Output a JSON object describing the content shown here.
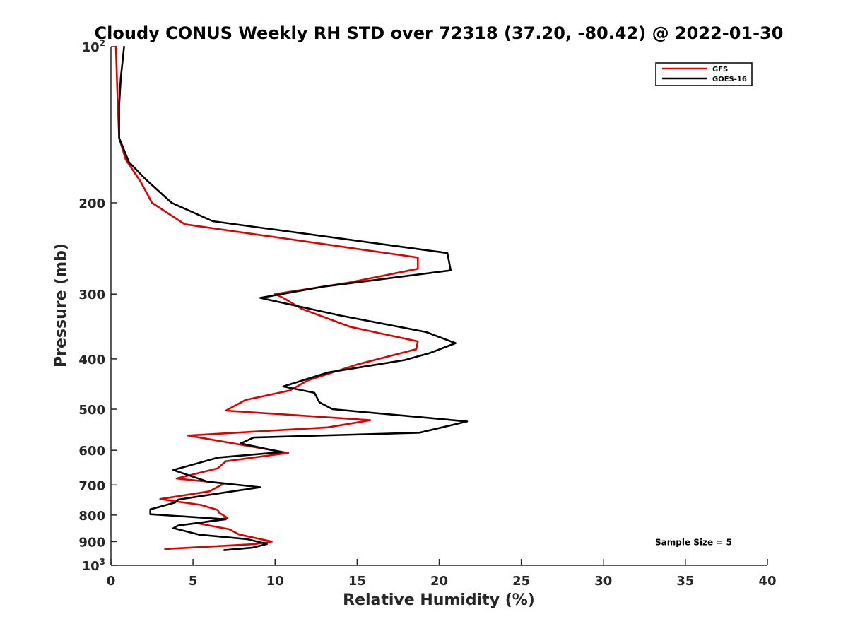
{
  "chart_data": {
    "type": "line",
    "title": "Cloudy CONUS Weekly RH STD over 72318 (37.20, -80.42) @ 2022-01-30",
    "xlabel": "Relative Humidity (%)",
    "ylabel": "Pressure (mb)",
    "xlim": [
      0,
      40
    ],
    "ylim": [
      100,
      1000
    ],
    "yscale": "log",
    "yreversed": true,
    "grid": false,
    "legend_position": "top-right",
    "xticks": [
      0,
      5,
      10,
      15,
      20,
      25,
      30,
      35,
      40
    ],
    "xtick_labels": [
      "0",
      "5",
      "10",
      "15",
      "20",
      "25",
      "30",
      "35",
      "40"
    ],
    "yticks": [
      {
        "value": 100,
        "base": "10",
        "exp": "2"
      },
      {
        "value": 200,
        "label": "200"
      },
      {
        "value": 300,
        "label": "300"
      },
      {
        "value": 400,
        "label": "400"
      },
      {
        "value": 500,
        "label": "500"
      },
      {
        "value": 600,
        "label": "600"
      },
      {
        "value": 700,
        "label": "700"
      },
      {
        "value": 800,
        "label": "800"
      },
      {
        "value": 900,
        "label": "900"
      },
      {
        "value": 1000,
        "base": "10",
        "exp": "3"
      }
    ],
    "series": [
      {
        "name": "GFS",
        "color": "#e00000",
        "points": [
          [
            0.3,
            100
          ],
          [
            0.4,
            125
          ],
          [
            0.5,
            150
          ],
          [
            0.9,
            165
          ],
          [
            1.8,
            182
          ],
          [
            2.5,
            200
          ],
          [
            4.5,
            220
          ],
          [
            18.7,
            255
          ],
          [
            18.7,
            268
          ],
          [
            14.5,
            285
          ],
          [
            10.0,
            300
          ],
          [
            10.5,
            305
          ],
          [
            11.6,
            320
          ],
          [
            14.6,
            347
          ],
          [
            18.7,
            370
          ],
          [
            18.6,
            383
          ],
          [
            15.0,
            410
          ],
          [
            12.0,
            440
          ],
          [
            10.9,
            460
          ],
          [
            8.2,
            480
          ],
          [
            7.0,
            503
          ],
          [
            15.8,
            525
          ],
          [
            13.2,
            542
          ],
          [
            4.7,
            562
          ],
          [
            10.8,
            607
          ],
          [
            7.0,
            630
          ],
          [
            6.5,
            650
          ],
          [
            4.0,
            680
          ],
          [
            6.9,
            695
          ],
          [
            6.0,
            720
          ],
          [
            3.0,
            745
          ],
          [
            5.5,
            765
          ],
          [
            6.5,
            782
          ],
          [
            6.6,
            792
          ],
          [
            7.1,
            810
          ],
          [
            5.3,
            830
          ],
          [
            7.2,
            852
          ],
          [
            7.8,
            872
          ],
          [
            9.8,
            900
          ],
          [
            8.8,
            910
          ],
          [
            3.3,
            930
          ]
        ]
      },
      {
        "name": "GOES-16",
        "color": "#000000",
        "points": [
          [
            0.8,
            100
          ],
          [
            0.6,
            115
          ],
          [
            0.5,
            130
          ],
          [
            0.5,
            150
          ],
          [
            1.1,
            167
          ],
          [
            2.1,
            180
          ],
          [
            3.7,
            200
          ],
          [
            6.2,
            217
          ],
          [
            20.5,
            250
          ],
          [
            20.7,
            270
          ],
          [
            13.0,
            290
          ],
          [
            9.1,
            305
          ],
          [
            14.0,
            330
          ],
          [
            19.2,
            355
          ],
          [
            21.0,
            373
          ],
          [
            19.4,
            390
          ],
          [
            17.9,
            402
          ],
          [
            13.2,
            425
          ],
          [
            10.5,
            452
          ],
          [
            12.4,
            465
          ],
          [
            12.7,
            485
          ],
          [
            13.5,
            500
          ],
          [
            21.7,
            528
          ],
          [
            18.8,
            555
          ],
          [
            8.7,
            567
          ],
          [
            7.9,
            582
          ],
          [
            10.4,
            605
          ],
          [
            6.5,
            620
          ],
          [
            3.8,
            655
          ],
          [
            5.9,
            690
          ],
          [
            9.1,
            707
          ],
          [
            7.4,
            720
          ],
          [
            4.1,
            747
          ],
          [
            3.9,
            757
          ],
          [
            2.4,
            780
          ],
          [
            2.4,
            797
          ],
          [
            7.0,
            815
          ],
          [
            4.1,
            838
          ],
          [
            3.8,
            848
          ],
          [
            5.4,
            873
          ],
          [
            8.3,
            890
          ],
          [
            9.5,
            910
          ],
          [
            8.6,
            925
          ],
          [
            6.9,
            935
          ]
        ]
      }
    ],
    "annotations": [
      {
        "text": "Sample Size = 5",
        "x": 35.5,
        "y": 900
      }
    ]
  }
}
